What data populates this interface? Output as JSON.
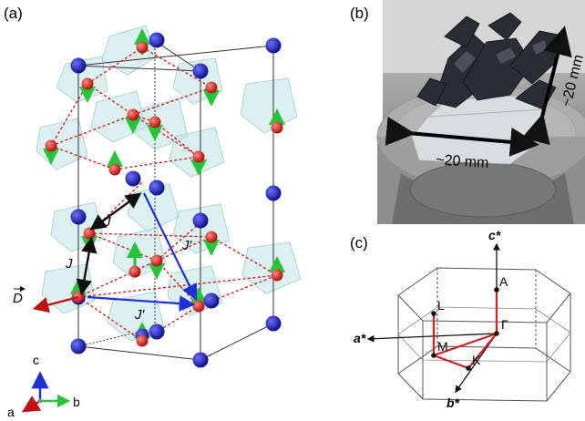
{
  "panels": {
    "a": "(a)",
    "b": "(b)",
    "c": "(c)"
  },
  "panel_a": {
    "exchange_labels": {
      "J1": "J",
      "J2": "J",
      "J3": "J′",
      "J4": "J′"
    },
    "dm_vector_label": "D",
    "axes": {
      "c": "c",
      "a": "a",
      "b": "b"
    },
    "colors": {
      "atom_blue": "#1a1fb5",
      "atom_red": "#e0302a",
      "spin_green": "#27c43a",
      "octahedra": "#bfe3e3",
      "bond_dotted": "#d01515",
      "J_arrow": "#111111",
      "Jprime_arrow": "#1f2fd6",
      "D_arrow": "#c01010"
    }
  },
  "panel_b": {
    "dimension_horizontal": "~20 mm",
    "dimension_vertical": "~20 mm"
  },
  "panel_c": {
    "axes": {
      "c_star": "c*",
      "a_star": "a*",
      "b_star": "b*"
    },
    "points": {
      "A": "A",
      "L": "L",
      "Gamma": "Γ",
      "M": "M",
      "K": "K"
    },
    "colors": {
      "path": "#d42020",
      "cell": "#555555"
    }
  }
}
